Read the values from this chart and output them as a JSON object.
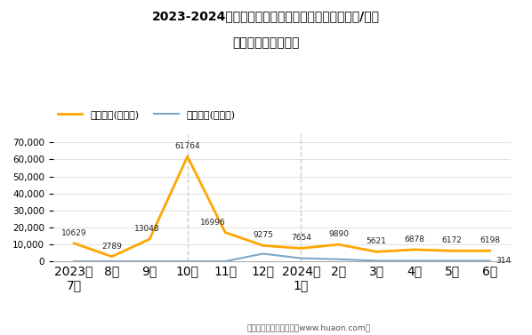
{
  "title_line1": "2023-2024年宝鸡高新技术产业开发区（境内目的地/货源",
  "title_line2": "地）进、出口额统计",
  "x_labels": [
    "2023年\n7月",
    "8月",
    "9月",
    "10月",
    "11月",
    "12月",
    "2024年\n1月",
    "2月",
    "3月",
    "4月",
    "5月",
    "6月"
  ],
  "export_values": [
    10629,
    2789,
    13048,
    61764,
    16996,
    9275,
    7654,
    9890,
    5621,
    6878,
    6172,
    6198
  ],
  "import_values": [
    0,
    0,
    0,
    0,
    0,
    4500,
    1800,
    1200,
    314,
    314,
    314,
    314
  ],
  "export_label": "出口总额(千美元)",
  "import_label": "进口总额(千美元)",
  "export_color": "#FFA500",
  "import_color": "#7DA6C8",
  "ylim": [
    0,
    75000
  ],
  "yticks": [
    0,
    10000,
    20000,
    30000,
    40000,
    50000,
    60000,
    70000
  ],
  "export_annotations": [
    "10629",
    "2789",
    "13048",
    "61764",
    "16996",
    "9275",
    "7654",
    "9890",
    "5621",
    "6878",
    "6172",
    "6198"
  ],
  "import_annotation_last": "314",
  "dashed_verticals": [
    3,
    6
  ],
  "footer": "制图：华经产业研究院（www.huaon.com）"
}
